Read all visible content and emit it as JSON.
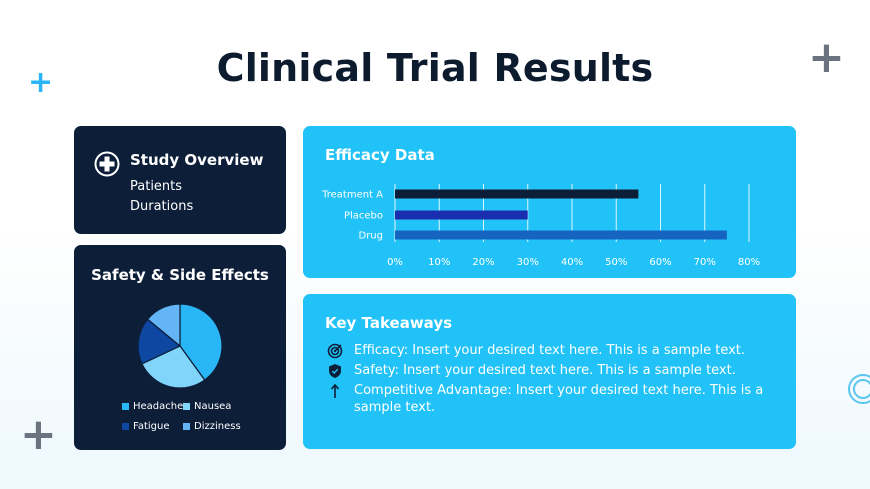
{
  "slide": {
    "title": "Clinical Trial Results"
  },
  "study_overview": {
    "heading": "Study Overview",
    "items": [
      "Patients",
      "Durations"
    ]
  },
  "safety": {
    "heading": "Safety & Side Effects",
    "legend": [
      {
        "label": "Headache",
        "color": "#29b6f6"
      },
      {
        "label": "Nausea",
        "color": "#81d4fa"
      },
      {
        "label": "Fatigue",
        "color": "#0d47a1"
      },
      {
        "label": "Dizziness",
        "color": "#64b5f6"
      }
    ]
  },
  "efficacy": {
    "heading": "Efficacy Data"
  },
  "takeaways": {
    "heading": "Key Takeaways",
    "items": [
      {
        "icon": "target-icon",
        "text": "Efficacy: Insert your desired text here. This is a sample text."
      },
      {
        "icon": "shield-icon",
        "text": "Safety: Insert your desired text here. This is a sample text."
      },
      {
        "icon": "arrow-up-icon",
        "text": "Competitive Advantage: Insert your desired text here. This is a sample text."
      }
    ]
  },
  "chart_data": [
    {
      "type": "bar",
      "orientation": "horizontal",
      "categories": [
        "Treatment A",
        "Placebo",
        "Drug"
      ],
      "values": [
        55,
        30,
        75
      ],
      "colors": [
        "#0d1e38",
        "#1a2fb0",
        "#1565c0"
      ],
      "xlim": [
        0,
        80
      ],
      "ticks": [
        0,
        10,
        20,
        30,
        40,
        50,
        60,
        70,
        80
      ],
      "tick_labels": [
        "0%",
        "10%",
        "20%",
        "30%",
        "40%",
        "50%",
        "60%",
        "70%",
        "80%"
      ],
      "grid": true
    },
    {
      "type": "pie",
      "labels": [
        "Headache",
        "Nausea",
        "Fatigue",
        "Dizziness"
      ],
      "values": [
        40,
        28,
        18,
        14
      ],
      "colors": [
        "#29b6f6",
        "#81d4fa",
        "#0d47a1",
        "#64b5f6"
      ]
    }
  ]
}
